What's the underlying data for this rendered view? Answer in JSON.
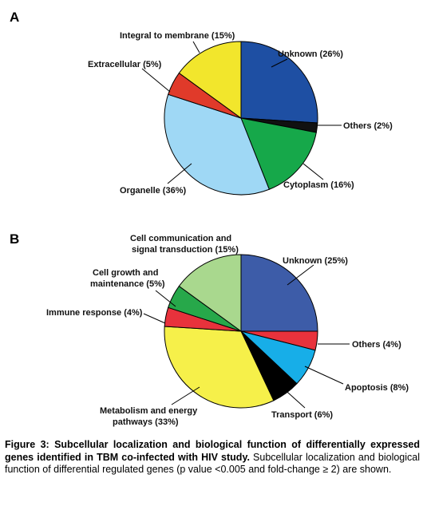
{
  "panels": {
    "a_letter": "A",
    "b_letter": "B"
  },
  "chart_data": [
    {
      "type": "pie",
      "panel": "A",
      "slices": [
        {
          "label": "Unknown (26%)",
          "value": 26,
          "color": "#1e4fa3"
        },
        {
          "label": "Others (2%)",
          "value": 2,
          "color": "#111111"
        },
        {
          "label": "Cytoplasm (16%)",
          "value": 16,
          "color": "#16a84a"
        },
        {
          "label": "Organelle (36%)",
          "value": 36,
          "color": "#9fd8f5"
        },
        {
          "label": "Extracellular (5%)",
          "value": 5,
          "color": "#e03a2a"
        },
        {
          "label": "Integral to membrane (15%)",
          "value": 15,
          "color": "#f2e62c"
        }
      ]
    },
    {
      "type": "pie",
      "panel": "B",
      "slices": [
        {
          "label": "Unknown (25%)",
          "value": 25,
          "color": "#3d5ca8"
        },
        {
          "label": "Others (4%)",
          "value": 4,
          "color": "#e8323c"
        },
        {
          "label": "Apoptosis (8%)",
          "value": 8,
          "color": "#17aee8"
        },
        {
          "label": "Transport (6%)",
          "value": 6,
          "color": "#000000"
        },
        {
          "label": "Metabolism and energy pathways (33%)",
          "value": 33,
          "color": "#f6f04a"
        },
        {
          "label": "Immune response (4%)",
          "value": 4,
          "color": "#e8323c"
        },
        {
          "label": "Cell growth and maintenance (5%)",
          "value": 5,
          "color": "#27a84a"
        },
        {
          "label": "Cell communication and signal transduction (15%)",
          "value": 15,
          "color": "#a9d88e"
        }
      ]
    }
  ],
  "labels_a": {
    "unknown": "Unknown (26%)",
    "others": "Others (2%)",
    "cytoplasm": "Cytoplasm (16%)",
    "organelle": "Organelle (36%)",
    "extracellular": "Extracellular (5%)",
    "integral": "Integral to membrane (15%)"
  },
  "labels_b": {
    "unknown": "Unknown (25%)",
    "others": "Others (4%)",
    "apoptosis": "Apoptosis (8%)",
    "transport": "Transport (6%)",
    "metabolism_1": "Metabolism and energy",
    "metabolism_2": "pathways (33%)",
    "immune": "Immune response (4%)",
    "growth_1": "Cell growth and",
    "growth_2": "maintenance (5%)",
    "comm_1": "Cell communication and",
    "comm_2": "signal transduction (15%)"
  },
  "caption": {
    "bold": "Figure 3: Subcellular localization and biological function of differentially expressed genes identified in TBM co-infected with HIV study.",
    "normal": " Subcellular localization and biological function of differential regulated genes (p value <0.005 and fold-change ≥ 2) are shown."
  }
}
